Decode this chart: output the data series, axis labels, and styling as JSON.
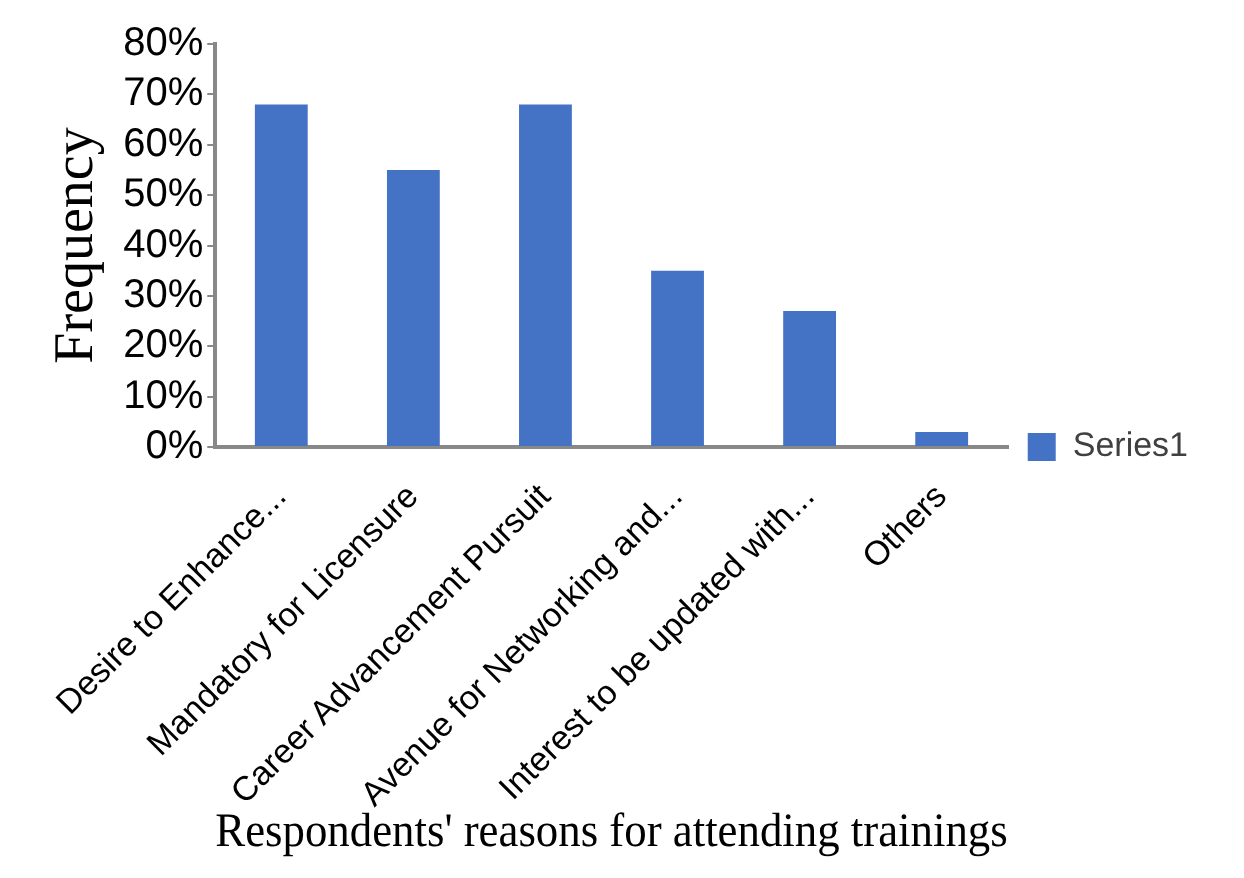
{
  "chart_data": {
    "type": "bar",
    "xlabel": "Respondents' reasons for attending trainings",
    "ylabel": "Frequency",
    "categories": [
      "Desire to Enhance...",
      "Mandatory for Licensure",
      "Career Advancement Pursuit",
      "Avenue for Networking and...",
      "Interest to be updated with...",
      "Others"
    ],
    "series": [
      {
        "name": "Series1",
        "color": "#4472c4",
        "values": [
          68,
          55,
          68,
          35,
          27,
          3
        ]
      }
    ],
    "ylim": [
      0,
      80
    ],
    "yticks": [
      {
        "value": 0,
        "label": "0%"
      },
      {
        "value": 10,
        "label": "10%"
      },
      {
        "value": 20,
        "label": "20%"
      },
      {
        "value": 30,
        "label": "30%"
      },
      {
        "value": 40,
        "label": "40%"
      },
      {
        "value": 50,
        "label": "50%"
      },
      {
        "value": 60,
        "label": "60%"
      },
      {
        "value": 70,
        "label": "70%"
      },
      {
        "value": 80,
        "label": "80%"
      }
    ],
    "grid": false,
    "legend": "right"
  }
}
